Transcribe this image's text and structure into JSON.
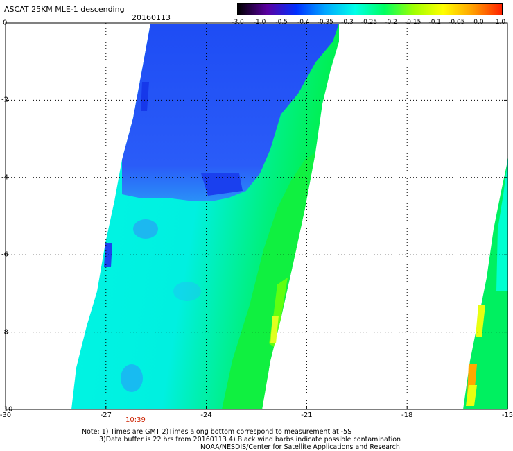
{
  "header": {
    "title": "ASCAT 25KM MLE-1 descending",
    "date": "20160113"
  },
  "colorbar": {
    "labels": [
      "-3.0",
      "-1.0",
      "-0.5",
      "-0.4",
      "-0.35",
      "-0.3",
      "-0.25",
      "-0.2",
      "-0.15",
      "-0.1",
      "-0.05",
      "0.0",
      "1.0"
    ],
    "colors": [
      "#000000",
      "#5a00a0",
      "#0030ff",
      "#00a8ff",
      "#00ffe8",
      "#00ff60",
      "#a0ff00",
      "#ffff00",
      "#ffa000",
      "#ff2000"
    ]
  },
  "axes": {
    "lat_labels": [
      "0",
      "-2",
      "-4",
      "-6",
      "-8",
      "-10"
    ],
    "lon_labels": [
      "-30",
      "-27",
      "-24",
      "-21",
      "-18",
      "-15"
    ],
    "lat_range": [
      -10,
      0
    ],
    "lon_range": [
      -30,
      -15
    ]
  },
  "swath": {
    "time_label": "10:39",
    "colors": {
      "strong": "#1a3cf2",
      "medium": "#2a70f8",
      "cyan": "#00f0e8",
      "light_cyan": "#00ffd0",
      "green": "#00f060",
      "bright_green": "#40ff20",
      "yellow": "#e8ff00",
      "orange": "#ffa800"
    }
  },
  "notes": {
    "line1": "Note: 1) Times are GMT 2)Times along bottom correspond to measurement at -5S",
    "line2": "3)Data buffer is 22 hrs from 20160113 4) Black wind barbs indicate possible contamination",
    "line3": "NOAA/NESDIS/Center for Satellite Applications and Research"
  }
}
